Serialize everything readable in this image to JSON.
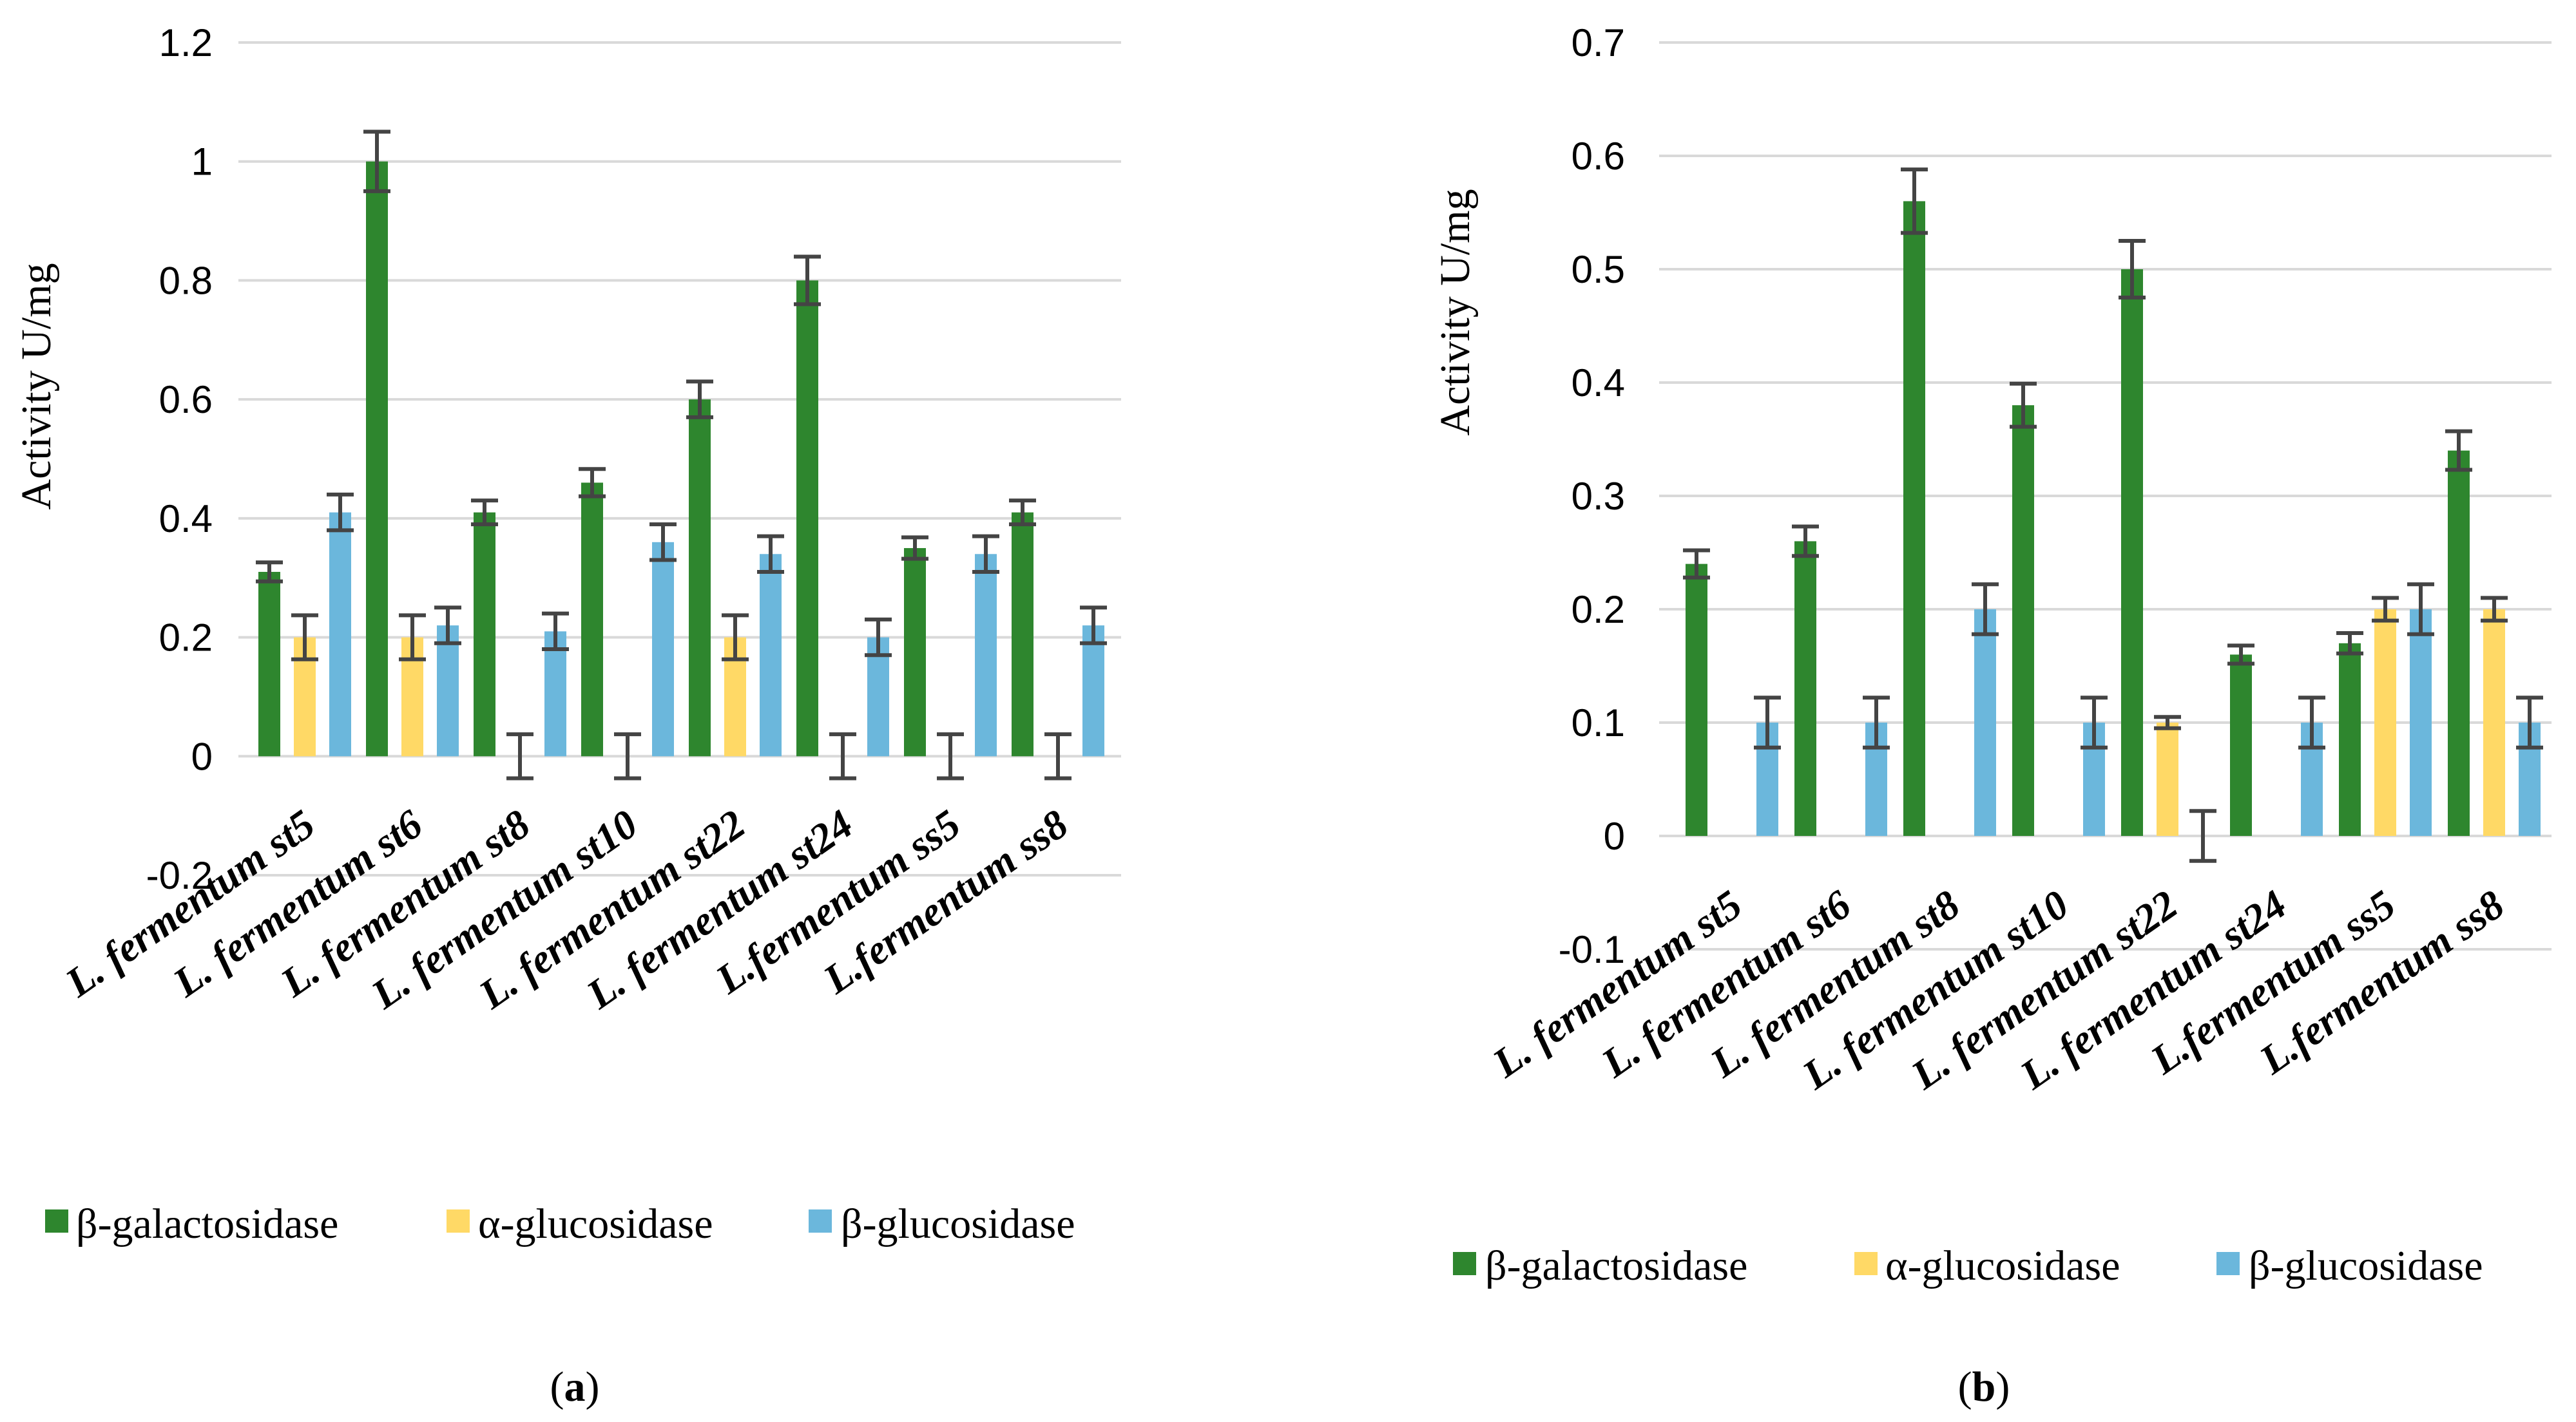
{
  "colors": {
    "galactosidase": "#2e862e",
    "alpha_glucosidase": "#ffd966",
    "beta_glucosidase": "#6bb7dc",
    "grid": "#d9d9d9",
    "error_bar": "#444444"
  },
  "chart_data": [
    {
      "type": "bar",
      "panel_label": "a",
      "ylabel": "Activity U/mg",
      "ylim": [
        -0.2,
        1.2
      ],
      "ytick_step": 0.2,
      "yticks": [
        "-0.2",
        "0",
        "0.2",
        "0.4",
        "0.6",
        "0.8",
        "1",
        "1.2"
      ],
      "categories": [
        "L. fermentum st5",
        "L. fermentum st6",
        "L. fermentum st8",
        "L. fermentum st10",
        "L. fermentum st22",
        "L. fermentum st24",
        "L.fermentum ss5",
        "L.fermentum ss8"
      ],
      "legend": [
        "β-galactosidase",
        "α-glucosidase",
        "β-glucosidase"
      ],
      "series": [
        {
          "name": "β-galactosidase",
          "values": [
            0.31,
            1.0,
            0.41,
            0.46,
            0.6,
            0.8,
            0.35,
            0.41
          ],
          "errors": [
            0.016,
            0.05,
            0.02,
            0.023,
            0.03,
            0.04,
            0.018,
            0.02
          ]
        },
        {
          "name": "α-glucosidase",
          "values": [
            0.2,
            0.2,
            0.0,
            0.0,
            0.2,
            0.0,
            0.0,
            0.0
          ],
          "errors": [
            0.037,
            0.037,
            0.037,
            0.037,
            0.037,
            0.037,
            0.037,
            0.037
          ]
        },
        {
          "name": "β-glucosidase",
          "values": [
            0.41,
            0.22,
            0.21,
            0.36,
            0.34,
            0.2,
            0.34,
            0.22
          ],
          "errors": [
            0.03,
            0.03,
            0.03,
            0.03,
            0.03,
            0.03,
            0.03,
            0.03
          ]
        }
      ]
    },
    {
      "type": "bar",
      "panel_label": "b",
      "ylabel": "Activity U/mg",
      "ylim": [
        -0.1,
        0.7
      ],
      "ytick_step": 0.1,
      "yticks": [
        "-0.1",
        "0",
        "0.1",
        "0.2",
        "0.3",
        "0.4",
        "0.5",
        "0.6",
        "0.7"
      ],
      "categories": [
        "L. fermentum st5",
        "L. fermentum st6",
        "L. fermentum st8",
        "L. fermentum st10",
        "L. fermentum st22",
        "L. fermentum st24",
        "L.fermentum ss5",
        "L.fermentum ss8"
      ],
      "legend": [
        "β-galactosidase",
        "α-glucosidase",
        "β-glucosidase"
      ],
      "series": [
        {
          "name": "β-galactosidase",
          "values": [
            0.24,
            0.26,
            0.56,
            0.38,
            0.5,
            0.16,
            0.17,
            0.34
          ],
          "errors": [
            0.012,
            0.013,
            0.028,
            0.019,
            0.025,
            0.008,
            0.009,
            0.017
          ]
        },
        {
          "name": "α-glucosidase",
          "values": [
            0,
            0,
            0,
            0,
            0.1,
            0,
            0.2,
            0.2
          ],
          "errors": [
            null,
            null,
            null,
            null,
            0.005,
            null,
            0.01,
            0.01
          ]
        },
        {
          "name": "β-glucosidase",
          "values": [
            0.1,
            0.1,
            0.2,
            0.1,
            0.0,
            0.1,
            0.2,
            0.1
          ],
          "errors": [
            0.022,
            0.022,
            0.022,
            0.022,
            0.022,
            0.022,
            0.022,
            0.022
          ]
        }
      ]
    }
  ]
}
